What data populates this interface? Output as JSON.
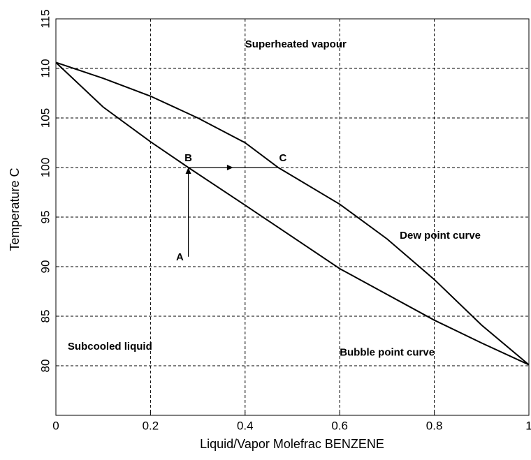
{
  "chart_data": {
    "type": "line",
    "x_label": "Liquid/Vapor Molefrac BENZENE",
    "y_label": "Temperature  C",
    "xlim": [
      0,
      1
    ],
    "ylim": [
      75,
      115
    ],
    "xticks": [
      0,
      0.2,
      0.4,
      0.6,
      0.8,
      1
    ],
    "yticks": [
      80,
      85,
      90,
      95,
      100,
      105,
      110,
      115
    ],
    "grid": true,
    "series": [
      {
        "name": "Bubble point curve",
        "color": "#000000",
        "x": [
          0,
          0.1,
          0.2,
          0.28,
          0.4,
          0.6,
          0.8,
          0.9,
          1
        ],
        "values": [
          110.6,
          106.1,
          102.6,
          100,
          96.2,
          89.8,
          84.6,
          82.3,
          80.1
        ]
      },
      {
        "name": "Dew point curve",
        "color": "#000000",
        "x": [
          0,
          0.1,
          0.2,
          0.3,
          0.4,
          0.47,
          0.6,
          0.7,
          0.8,
          0.9,
          1
        ],
        "values": [
          110.6,
          109,
          107.2,
          105,
          102.5,
          100,
          96.3,
          92.8,
          88.7,
          84.1,
          80.1
        ]
      }
    ],
    "arrows": [
      {
        "x": [
          0.28,
          0.28
        ],
        "y": [
          91,
          100
        ],
        "head": "end"
      },
      {
        "x": [
          0.28,
          0.47
        ],
        "y": [
          100,
          100
        ],
        "head": "mid"
      }
    ],
    "annotations": [
      {
        "text": "Superheated vapour",
        "x": 0.4,
        "y": 112.4,
        "anchor": "start"
      },
      {
        "text": "Dew point curve",
        "x": 0.727,
        "y": 93.1,
        "anchor": "start"
      },
      {
        "text": "Bubble point curve",
        "x": 0.6,
        "y": 81.3,
        "anchor": "start"
      },
      {
        "text": "Subcooled liquid",
        "x": 0.025,
        "y": 81.9,
        "anchor": "start"
      },
      {
        "text": "A",
        "x": 0.27,
        "y": 90.9,
        "anchor": "end"
      },
      {
        "text": "B",
        "x": 0.28,
        "y": 100.9,
        "anchor": "middle"
      },
      {
        "text": "C",
        "x": 0.48,
        "y": 100.9,
        "anchor": "middle"
      }
    ]
  }
}
